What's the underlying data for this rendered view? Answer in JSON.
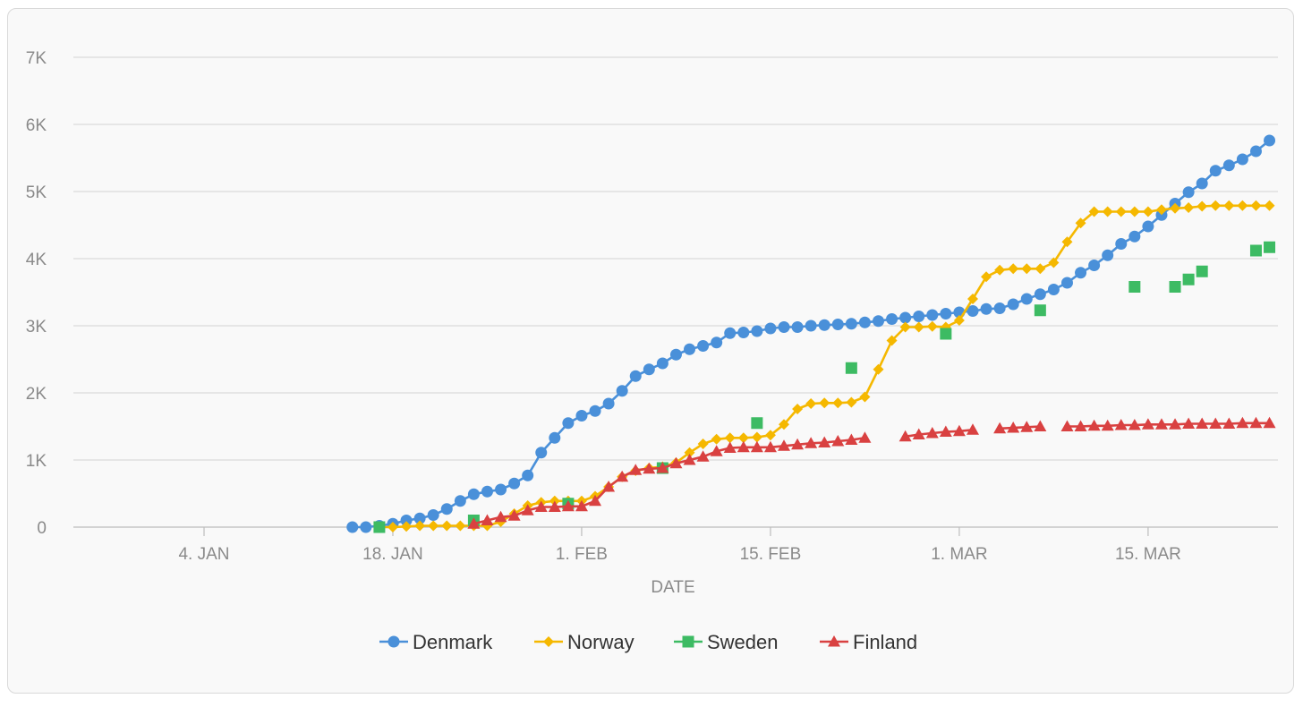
{
  "chart_data": {
    "type": "line",
    "xlabel": "DATE",
    "ylabel": "",
    "ylim": [
      0,
      7000
    ],
    "xlim": [
      "2020-12-28",
      "2021-03-27"
    ],
    "y_ticks": [
      {
        "value": 0,
        "label": "0"
      },
      {
        "value": 1000,
        "label": "1K"
      },
      {
        "value": 2000,
        "label": "2K"
      },
      {
        "value": 3000,
        "label": "3K"
      },
      {
        "value": 4000,
        "label": "4K"
      },
      {
        "value": 5000,
        "label": "5K"
      },
      {
        "value": 6000,
        "label": "6K"
      },
      {
        "value": 7000,
        "label": "7K"
      }
    ],
    "x_ticks": [
      {
        "date": "2021-01-04",
        "label": "4. JAN"
      },
      {
        "date": "2021-01-18",
        "label": "18. JAN"
      },
      {
        "date": "2021-02-01",
        "label": "1. FEB"
      },
      {
        "date": "2021-02-15",
        "label": "15. FEB"
      },
      {
        "date": "2021-03-01",
        "label": "1. MAR"
      },
      {
        "date": "2021-03-15",
        "label": "15. MAR"
      }
    ],
    "grid": true,
    "legend_position": "bottom",
    "series": [
      {
        "name": "Denmark",
        "color": "#4a90d9",
        "marker": "circle",
        "x": [
          "2021-01-15",
          "2021-01-16",
          "2021-01-17",
          "2021-01-18",
          "2021-01-19",
          "2021-01-20",
          "2021-01-21",
          "2021-01-22",
          "2021-01-23",
          "2021-01-24",
          "2021-01-25",
          "2021-01-26",
          "2021-01-27",
          "2021-01-28",
          "2021-01-29",
          "2021-01-30",
          "2021-01-31",
          "2021-02-01",
          "2021-02-02",
          "2021-02-03",
          "2021-02-04",
          "2021-02-05",
          "2021-02-06",
          "2021-02-07",
          "2021-02-08",
          "2021-02-09",
          "2021-02-10",
          "2021-02-11",
          "2021-02-12",
          "2021-02-13",
          "2021-02-14",
          "2021-02-15",
          "2021-02-16",
          "2021-02-17",
          "2021-02-18",
          "2021-02-19",
          "2021-02-20",
          "2021-02-21",
          "2021-02-22",
          "2021-02-23",
          "2021-02-24",
          "2021-02-25",
          "2021-02-26",
          "2021-02-27",
          "2021-02-28",
          "2021-03-01",
          "2021-03-02",
          "2021-03-03",
          "2021-03-04",
          "2021-03-05",
          "2021-03-06",
          "2021-03-07",
          "2021-03-08",
          "2021-03-09",
          "2021-03-10",
          "2021-03-11",
          "2021-03-12",
          "2021-03-13",
          "2021-03-14",
          "2021-03-15",
          "2021-03-16",
          "2021-03-17",
          "2021-03-18",
          "2021-03-19",
          "2021-03-20",
          "2021-03-21",
          "2021-03-22",
          "2021-03-23",
          "2021-03-24"
        ],
        "y": [
          0,
          0,
          20,
          50,
          100,
          130,
          180,
          270,
          390,
          490,
          530,
          560,
          650,
          770,
          1110,
          1330,
          1550,
          1660,
          1730,
          1840,
          2030,
          2250,
          2350,
          2440,
          2570,
          2650,
          2700,
          2750,
          2890,
          2900,
          2920,
          2960,
          2980,
          2980,
          3000,
          3010,
          3020,
          3030,
          3050,
          3070,
          3100,
          3120,
          3140,
          3160,
          3180,
          3200,
          3220,
          3250,
          3260,
          3320,
          3400,
          3470,
          3540,
          3640,
          3790,
          3900,
          4050,
          4220,
          4330,
          4480,
          4650,
          4820,
          4990,
          5120,
          5310,
          5390,
          5480,
          5600,
          5760
        ]
      },
      {
        "name": "Norway",
        "color": "#f5b800",
        "marker": "diamond",
        "x": [
          "2021-01-17",
          "2021-01-18",
          "2021-01-19",
          "2021-01-20",
          "2021-01-21",
          "2021-01-22",
          "2021-01-23",
          "2021-01-24",
          "2021-01-25",
          "2021-01-26",
          "2021-01-27",
          "2021-01-28",
          "2021-01-29",
          "2021-01-30",
          "2021-01-31",
          "2021-02-01",
          "2021-02-02",
          "2021-02-03",
          "2021-02-04",
          "2021-02-05",
          "2021-02-06",
          "2021-02-07",
          "2021-02-08",
          "2021-02-09",
          "2021-02-10",
          "2021-02-11",
          "2021-02-12",
          "2021-02-13",
          "2021-02-14",
          "2021-02-15",
          "2021-02-16",
          "2021-02-17",
          "2021-02-18",
          "2021-02-19",
          "2021-02-20",
          "2021-02-21",
          "2021-02-22",
          "2021-02-23",
          "2021-02-24",
          "2021-02-25",
          "2021-02-26",
          "2021-02-27",
          "2021-02-28",
          "2021-03-01",
          "2021-03-02",
          "2021-03-03",
          "2021-03-04",
          "2021-03-05",
          "2021-03-06",
          "2021-03-07",
          "2021-03-08",
          "2021-03-09",
          "2021-03-10",
          "2021-03-11",
          "2021-03-12",
          "2021-03-13",
          "2021-03-14",
          "2021-03-15",
          "2021-03-16",
          "2021-03-17",
          "2021-03-18",
          "2021-03-19",
          "2021-03-20",
          "2021-03-21",
          "2021-03-22",
          "2021-03-23",
          "2021-03-24"
        ],
        "y": [
          0,
          0,
          10,
          20,
          20,
          20,
          20,
          20,
          20,
          80,
          200,
          320,
          370,
          390,
          390,
          390,
          460,
          600,
          750,
          840,
          880,
          900,
          960,
          1110,
          1240,
          1310,
          1330,
          1330,
          1340,
          1370,
          1530,
          1760,
          1840,
          1850,
          1850,
          1860,
          1940,
          2350,
          2780,
          2980,
          2980,
          2990,
          2980,
          3080,
          3400,
          3730,
          3830,
          3850,
          3850,
          3850,
          3940,
          4250,
          4530,
          4700,
          4700,
          4700,
          4700,
          4700,
          4730,
          4750,
          4760,
          4780,
          4790,
          4790,
          4790,
          4790,
          4790
        ]
      },
      {
        "name": "Sweden",
        "color": "#3dbb63",
        "marker": "square",
        "x": [
          "2021-01-17",
          "2021-01-24",
          "2021-01-31",
          "2021-02-07",
          "2021-02-14",
          "2021-02-21",
          "2021-02-28",
          "2021-03-07",
          "2021-03-14",
          "2021-03-17",
          "2021-03-18",
          "2021-03-19",
          "2021-03-23",
          "2021-03-24"
        ],
        "y": [
          0,
          100,
          350,
          880,
          1550,
          2370,
          2880,
          3230,
          3580,
          3580,
          3690,
          3810,
          4120,
          4170
        ]
      },
      {
        "name": "Finland",
        "color": "#d94141",
        "marker": "triangle",
        "x": [
          "2021-01-24",
          "2021-01-25",
          "2021-01-26",
          "2021-01-27",
          "2021-01-28",
          "2021-01-29",
          "2021-01-30",
          "2021-01-31",
          "2021-02-01",
          "2021-02-02",
          "2021-02-03",
          "2021-02-04",
          "2021-02-05",
          "2021-02-06",
          "2021-02-07",
          "2021-02-08",
          "2021-02-09",
          "2021-02-10",
          "2021-02-11",
          "2021-02-12",
          "2021-02-13",
          "2021-02-14",
          "2021-02-15",
          "2021-02-16",
          "2021-02-17",
          "2021-02-18",
          "2021-02-19",
          "2021-02-20",
          "2021-02-21",
          "2021-02-22",
          null,
          "2021-02-25",
          "2021-02-26",
          "2021-02-27",
          "2021-02-28",
          "2021-03-01",
          "2021-03-02",
          null,
          "2021-03-04",
          "2021-03-05",
          "2021-03-06",
          "2021-03-07",
          null,
          "2021-03-09",
          "2021-03-10",
          "2021-03-11",
          "2021-03-12",
          "2021-03-13",
          "2021-03-14",
          "2021-03-15",
          "2021-03-16",
          "2021-03-17",
          "2021-03-18",
          "2021-03-19",
          "2021-03-20",
          "2021-03-21",
          "2021-03-22",
          "2021-03-23",
          "2021-03-24"
        ],
        "y": [
          50,
          100,
          150,
          170,
          250,
          300,
          300,
          310,
          310,
          390,
          600,
          750,
          850,
          870,
          880,
          950,
          1000,
          1050,
          1130,
          1180,
          1190,
          1190,
          1190,
          1210,
          1230,
          1250,
          1260,
          1280,
          1300,
          1330,
          null,
          1350,
          1380,
          1400,
          1420,
          1430,
          1450,
          null,
          1470,
          1480,
          1490,
          1500,
          null,
          1500,
          1500,
          1510,
          1510,
          1520,
          1520,
          1530,
          1530,
          1530,
          1540,
          1540,
          1540,
          1540,
          1550,
          1550,
          1550
        ]
      }
    ]
  }
}
